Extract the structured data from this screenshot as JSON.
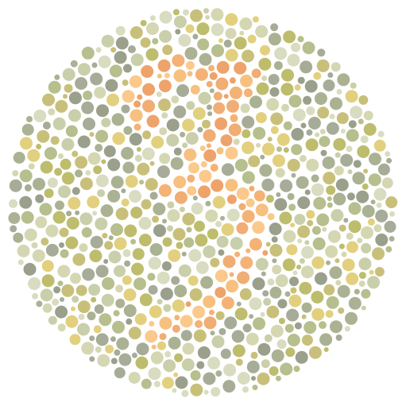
{
  "plate": {
    "hidden_numeral": "3",
    "palette": {
      "background": "#ffffff",
      "figure": [
        "#f7c07f",
        "#f4b276",
        "#eea36b",
        "#fbc98c",
        "#f0ad74"
      ],
      "ground": [
        "#a6ac98",
        "#9aa08c",
        "#c9cfaa",
        "#d5d7b3",
        "#bdbd6d",
        "#c8c07a",
        "#e2d07f",
        "#b6bf8d",
        "#aab293",
        "#d9dcc0"
      ]
    }
  }
}
